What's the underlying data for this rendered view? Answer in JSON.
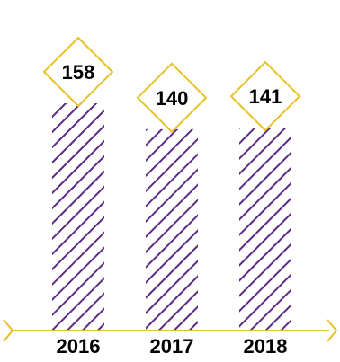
{
  "chart_data": {
    "type": "bar",
    "categories": [
      "2016",
      "2017",
      "2018"
    ],
    "values": [
      158,
      140,
      141
    ],
    "title": "",
    "xlabel": "",
    "ylabel": "",
    "ylim": [
      0,
      158
    ],
    "grid": false,
    "legend": "none",
    "colors": {
      "hatch": "#5b2a86",
      "axis": "#e6c229",
      "label_box": "#e6c229",
      "text": "#000000"
    }
  }
}
